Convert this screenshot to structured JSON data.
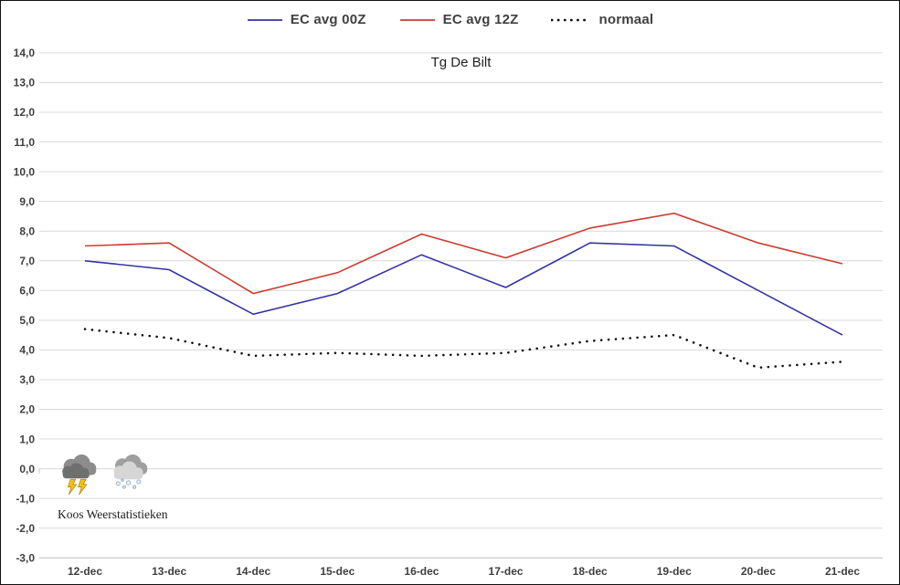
{
  "branding": {
    "text": "Koos Weerstatistieken",
    "icons": [
      "thunderstorm-icon",
      "snow-cloud-icon"
    ]
  },
  "colors": {
    "grid": "#D9D9D9",
    "axis": "#BFBFBF",
    "axis_text": "#3F3F3F",
    "legend_text": "#404040",
    "series_blue": "#3333A0",
    "series_red": "#CB3B31",
    "series_black": "#111111"
  },
  "chart_data": {
    "type": "line",
    "title": "Tg De Bilt",
    "categories": [
      "12-dec",
      "13-dec",
      "14-dec",
      "15-dec",
      "16-dec",
      "17-dec",
      "18-dec",
      "19-dec",
      "20-dec",
      "21-dec"
    ],
    "series": [
      {
        "name": "EC avg 00Z",
        "color": "#3333A0",
        "style": "solid",
        "values": [
          7.0,
          6.7,
          5.2,
          5.9,
          7.2,
          6.1,
          7.6,
          7.5,
          6.0,
          4.5
        ]
      },
      {
        "name": "EC avg 12Z",
        "color": "#CB3B31",
        "style": "solid",
        "values": [
          7.5,
          7.6,
          5.9,
          6.6,
          7.9,
          7.1,
          8.1,
          8.6,
          7.6,
          6.9
        ]
      },
      {
        "name": "normaal",
        "color": "#111111",
        "style": "dotted",
        "values": [
          4.7,
          4.4,
          3.8,
          3.9,
          3.8,
          3.9,
          4.3,
          4.5,
          3.4,
          3.6
        ]
      }
    ],
    "ylim": [
      -3.0,
      14.0
    ],
    "ytick_step": 1.0,
    "ytick_format": "comma-decimal",
    "xlabel": "",
    "ylabel": "",
    "grid": "horizontal",
    "legend_position": "top-center"
  }
}
